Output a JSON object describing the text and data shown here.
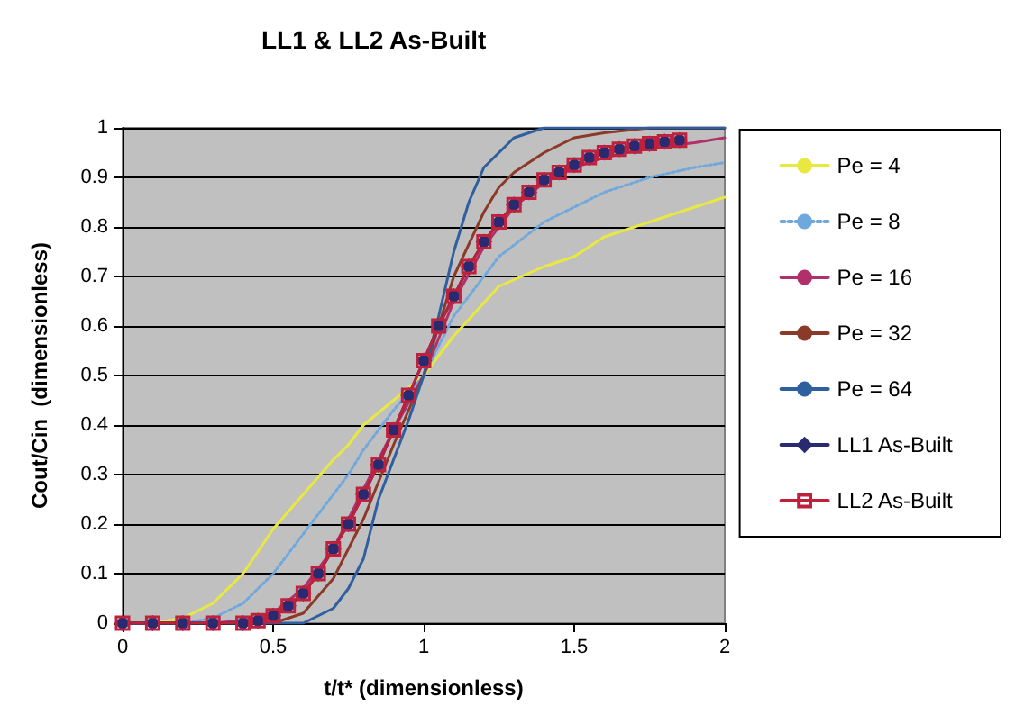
{
  "chart_data": {
    "type": "line",
    "title": "LL1 & LL2 As-Built",
    "xlabel": "t/t* (dimensionless)",
    "ylabel": "Cout/Cin  (dimensionless)",
    "xlim": [
      0,
      2
    ],
    "xticks": [
      0,
      0.5,
      1,
      1.5,
      2
    ],
    "ylim": [
      0,
      1
    ],
    "yticks": [
      0,
      0.1,
      0.2,
      0.3,
      0.4,
      0.5,
      0.6,
      0.7,
      0.8,
      0.9,
      1
    ],
    "grid": "y",
    "legend": "right",
    "marker": "none",
    "series": [
      {
        "name": "Pe = 4",
        "color": "#e8e840",
        "x": [
          0,
          0.1,
          0.2,
          0.3,
          0.4,
          0.5,
          0.6,
          0.7,
          0.75,
          0.8,
          0.9,
          1,
          1.1,
          1.25,
          1.4,
          1.5,
          1.6,
          1.75,
          1.9,
          2
        ],
        "values": [
          0,
          0,
          0.01,
          0.04,
          0.1,
          0.19,
          0.26,
          0.33,
          0.36,
          0.4,
          0.45,
          0.5,
          0.58,
          0.68,
          0.72,
          0.74,
          0.78,
          0.81,
          0.84,
          0.86
        ]
      },
      {
        "name": "Pe = 8",
        "color": "#6fa8dc",
        "line_style": "dotted",
        "x": [
          0,
          0.2,
          0.3,
          0.4,
          0.5,
          0.6,
          0.7,
          0.75,
          0.8,
          0.9,
          1,
          1.1,
          1.25,
          1.4,
          1.5,
          1.6,
          1.75,
          1.9,
          2
        ],
        "values": [
          0,
          0,
          0.01,
          0.04,
          0.1,
          0.18,
          0.26,
          0.3,
          0.35,
          0.43,
          0.5,
          0.62,
          0.74,
          0.81,
          0.84,
          0.87,
          0.9,
          0.92,
          0.93
        ]
      },
      {
        "name": "Pe = 16",
        "color": "#b0306a",
        "x": [
          0,
          0.3,
          0.4,
          0.5,
          0.6,
          0.7,
          0.75,
          0.8,
          0.9,
          1,
          1.1,
          1.2,
          1.25,
          1.3,
          1.4,
          1.5,
          1.6,
          1.75,
          1.9,
          2
        ],
        "values": [
          0,
          0,
          0.005,
          0.02,
          0.07,
          0.15,
          0.21,
          0.27,
          0.39,
          0.5,
          0.65,
          0.76,
          0.8,
          0.84,
          0.89,
          0.92,
          0.94,
          0.96,
          0.97,
          0.98
        ]
      },
      {
        "name": "Pe = 32",
        "color": "#8b3a2a",
        "x": [
          0,
          0.5,
          0.6,
          0.7,
          0.75,
          0.8,
          0.9,
          1,
          1.1,
          1.2,
          1.25,
          1.3,
          1.4,
          1.5,
          1.6,
          1.75,
          2
        ],
        "values": [
          0,
          0,
          0.02,
          0.09,
          0.15,
          0.21,
          0.36,
          0.5,
          0.7,
          0.83,
          0.88,
          0.91,
          0.95,
          0.98,
          0.99,
          1,
          1
        ]
      },
      {
        "name": "Pe = 64",
        "color": "#2f5f9f",
        "x": [
          0,
          0.6,
          0.7,
          0.75,
          0.8,
          0.85,
          0.9,
          0.95,
          1,
          1.05,
          1.1,
          1.15,
          1.2,
          1.25,
          1.3,
          1.4,
          2
        ],
        "values": [
          0,
          0,
          0.03,
          0.07,
          0.13,
          0.25,
          0.33,
          0.41,
          0.5,
          0.62,
          0.75,
          0.85,
          0.92,
          0.95,
          0.98,
          1,
          1
        ]
      },
      {
        "name": "LL1 As-Built",
        "color": "#2a2a70",
        "marker": "diamond",
        "x": [
          0,
          0.1,
          0.2,
          0.3,
          0.4,
          0.45,
          0.5,
          0.55,
          0.6,
          0.65,
          0.7,
          0.75,
          0.8,
          0.85,
          0.9,
          0.95,
          1,
          1.05,
          1.1,
          1.15,
          1.2,
          1.25,
          1.3,
          1.35,
          1.4,
          1.45,
          1.5,
          1.55,
          1.6,
          1.65,
          1.7,
          1.75,
          1.8,
          1.85
        ],
        "values": [
          0,
          0,
          0,
          0,
          0,
          0.005,
          0.015,
          0.035,
          0.06,
          0.1,
          0.15,
          0.2,
          0.26,
          0.32,
          0.39,
          0.46,
          0.53,
          0.6,
          0.66,
          0.72,
          0.77,
          0.81,
          0.845,
          0.87,
          0.895,
          0.91,
          0.925,
          0.94,
          0.95,
          0.957,
          0.963,
          0.968,
          0.972,
          0.975
        ]
      },
      {
        "name": "LL2 As-Built",
        "color": "#c0203c",
        "marker": "square",
        "x": [
          0,
          0.1,
          0.2,
          0.3,
          0.4,
          0.45,
          0.5,
          0.55,
          0.6,
          0.65,
          0.7,
          0.75,
          0.8,
          0.85,
          0.9,
          0.95,
          1,
          1.05,
          1.1,
          1.15,
          1.2,
          1.25,
          1.3,
          1.35,
          1.4,
          1.45,
          1.5,
          1.55,
          1.6,
          1.65,
          1.7,
          1.75,
          1.8,
          1.85
        ],
        "values": [
          0,
          0,
          0,
          0,
          0,
          0.005,
          0.015,
          0.035,
          0.06,
          0.1,
          0.15,
          0.2,
          0.26,
          0.32,
          0.39,
          0.46,
          0.53,
          0.6,
          0.66,
          0.72,
          0.77,
          0.81,
          0.845,
          0.87,
          0.895,
          0.91,
          0.925,
          0.94,
          0.95,
          0.957,
          0.963,
          0.968,
          0.972,
          0.975
        ]
      }
    ]
  }
}
